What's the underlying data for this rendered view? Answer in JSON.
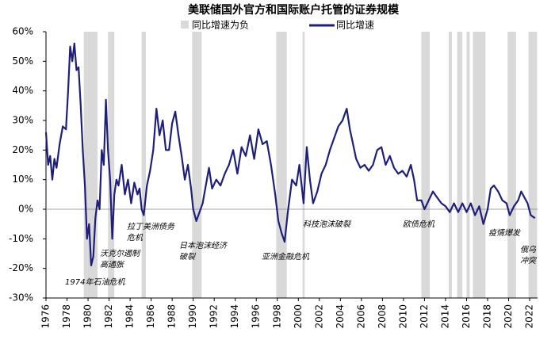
{
  "chart_data": {
    "type": "line",
    "title": "美联储国外官方和国际账户托管的证券规模",
    "x": [
      1976.0,
      1976.2,
      1976.4,
      1976.6,
      1976.8,
      1977.0,
      1977.3,
      1977.6,
      1977.9,
      1978.1,
      1978.3,
      1978.5,
      1978.7,
      1978.9,
      1979.1,
      1979.3,
      1979.5,
      1979.7,
      1979.9,
      1980.1,
      1980.3,
      1980.5,
      1980.7,
      1980.9,
      1981.1,
      1981.3,
      1981.5,
      1981.7,
      1981.9,
      1982.1,
      1982.3,
      1982.5,
      1982.7,
      1982.9,
      1983.2,
      1983.5,
      1983.8,
      1984.1,
      1984.4,
      1984.7,
      1984.9,
      1985.1,
      1985.3,
      1985.6,
      1985.9,
      1986.2,
      1986.5,
      1986.8,
      1987.1,
      1987.4,
      1987.7,
      1988.0,
      1988.3,
      1988.6,
      1988.9,
      1989.2,
      1989.5,
      1989.8,
      1990.0,
      1990.3,
      1990.6,
      1990.9,
      1991.2,
      1991.5,
      1991.8,
      1992.2,
      1992.6,
      1993.0,
      1993.4,
      1993.8,
      1994.2,
      1994.6,
      1995.0,
      1995.4,
      1995.8,
      1996.2,
      1996.6,
      1997.0,
      1997.4,
      1997.8,
      1998.1,
      1998.4,
      1998.7,
      1999.0,
      1999.4,
      1999.8,
      2000.1,
      2000.5,
      2000.8,
      2001.1,
      2001.4,
      2001.8,
      2002.2,
      2002.6,
      2003.0,
      2003.4,
      2003.8,
      2004.2,
      2004.6,
      2004.9,
      2005.2,
      2005.5,
      2005.9,
      2006.3,
      2006.7,
      2007.1,
      2007.5,
      2007.9,
      2008.3,
      2008.7,
      2009.1,
      2009.5,
      2009.9,
      2010.3,
      2010.7,
      2011.0,
      2011.3,
      2011.7,
      2012.0,
      2012.4,
      2012.8,
      2013.2,
      2013.6,
      2014.0,
      2014.4,
      2014.8,
      2015.2,
      2015.6,
      2016.0,
      2016.4,
      2016.8,
      2017.2,
      2017.6,
      2018.0,
      2018.3,
      2018.6,
      2019.0,
      2019.4,
      2019.8,
      2020.1,
      2020.5,
      2020.9,
      2021.2,
      2021.5,
      2021.8,
      2022.1,
      2022.5
    ],
    "series": [
      {
        "name": "同比增速",
        "color": "#1f1f7a",
        "values": [
          26,
          15,
          18,
          10,
          17,
          14,
          22,
          28,
          27,
          40,
          55,
          50,
          56,
          47,
          48,
          35,
          20,
          8,
          -10,
          -5,
          -19,
          -16,
          -3,
          3,
          0,
          20,
          15,
          37,
          20,
          10,
          -10,
          5,
          10,
          8,
          15,
          5,
          10,
          2,
          9,
          5,
          7,
          0,
          -2,
          8,
          13,
          20,
          34,
          25,
          30,
          20,
          20,
          29,
          33,
          25,
          18,
          10,
          15,
          7,
          0,
          -4,
          -1,
          2,
          8,
          14,
          7,
          10,
          8,
          12,
          15,
          20,
          12,
          21,
          18,
          25,
          17,
          27,
          22,
          23,
          15,
          5,
          -4,
          -8,
          -11,
          -1,
          10,
          8,
          15,
          2,
          21,
          10,
          2,
          6,
          12,
          15,
          20,
          24,
          28,
          30,
          34,
          27,
          22,
          17,
          14,
          15,
          13,
          15,
          20,
          21,
          15,
          18,
          14,
          12,
          13,
          11,
          15,
          10,
          3,
          3,
          0,
          3,
          6,
          4,
          2,
          1,
          -1,
          2,
          -1,
          2,
          -1,
          2,
          -2,
          1,
          -5,
          0,
          7,
          8,
          6,
          3,
          2,
          -2,
          1,
          3,
          6,
          4,
          2,
          -2,
          -3
        ]
      }
    ],
    "negative_periods": {
      "name": "同比增速为负",
      "color": "#d9d9d9",
      "ranges": [
        [
          1979.6,
          1980.9
        ],
        [
          1981.9,
          1982.5
        ],
        [
          1985.1,
          1985.5
        ],
        [
          1989.9,
          1990.8
        ],
        [
          1997.9,
          1998.9
        ],
        [
          2000.4,
          2000.6
        ],
        [
          2011.7,
          2012.5
        ],
        [
          2014.3,
          2014.6
        ],
        [
          2015.1,
          2015.6
        ],
        [
          2016.0,
          2016.3
        ],
        [
          2016.6,
          2017.8
        ],
        [
          2019.9,
          2020.7
        ],
        [
          2021.9,
          2022.7
        ]
      ]
    },
    "annotations": [
      [
        "1974年石油危机"
      ],
      [
        "沃克尔遏制",
        "高通胀"
      ],
      [
        "拉丁美洲债务",
        "危机"
      ],
      [
        "日本泡沫经济",
        "破裂"
      ],
      [
        "亚洲金融危机"
      ],
      [
        "科技泡沫破裂"
      ],
      [
        "欧债危机"
      ],
      [
        "疫情爆发"
      ],
      [
        "俄乌",
        "冲突"
      ]
    ],
    "xlim": [
      1976,
      2022.75
    ],
    "xticks": [
      1976,
      1978,
      1980,
      1982,
      1984,
      1986,
      1988,
      1990,
      1992,
      1994,
      1996,
      1998,
      2000,
      2002,
      2004,
      2006,
      2008,
      2010,
      2012,
      2014,
      2016,
      2018,
      2020,
      2022
    ],
    "ylim": [
      -30,
      60
    ],
    "yticks": [
      {
        "value": -30,
        "label": "-30%"
      },
      {
        "value": -20,
        "label": "-20%"
      },
      {
        "value": -10,
        "label": "-10%"
      },
      {
        "value": 0,
        "label": "0%"
      },
      {
        "value": 10,
        "label": "10%"
      },
      {
        "value": 20,
        "label": "20%"
      },
      {
        "value": 30,
        "label": "30%"
      },
      {
        "value": 40,
        "label": "40%"
      },
      {
        "value": 50,
        "label": "50%"
      },
      {
        "value": 60,
        "label": "60%"
      }
    ]
  }
}
